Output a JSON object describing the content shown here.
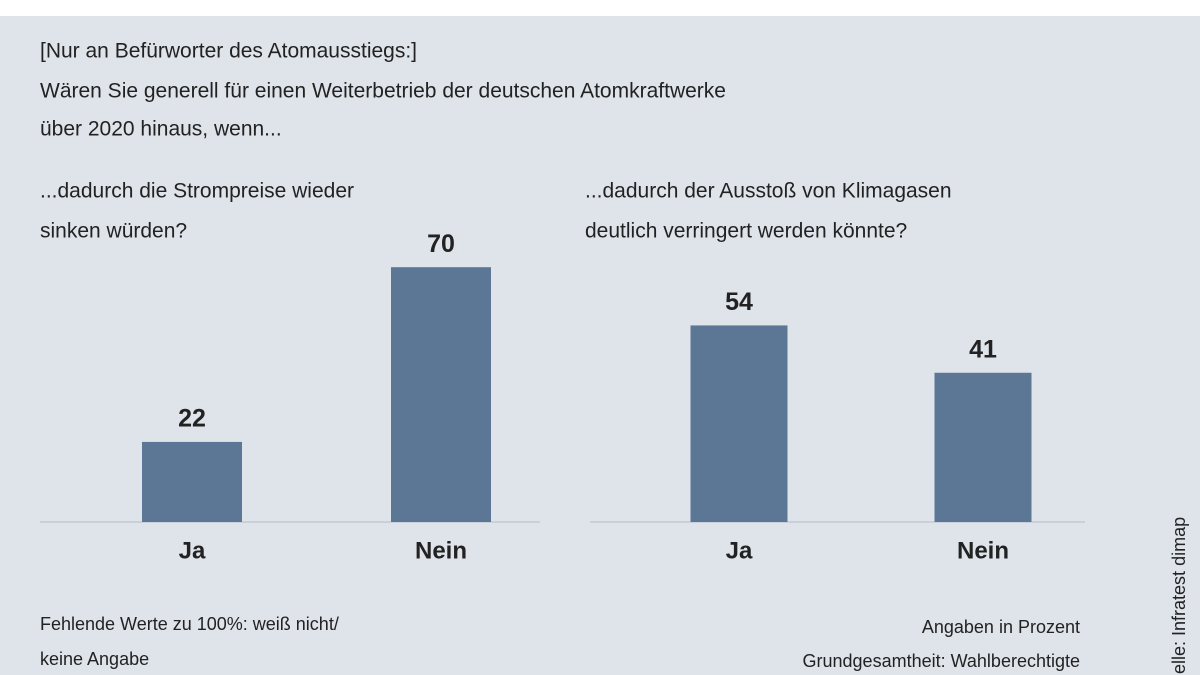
{
  "intro": "[Nur an Befürworter des Atomausstiegs:]",
  "question": [
    "Wären Sie generell für einen Weiterbetrieb der deutschen Atomkraftwerke",
    "über 2020 hinaus, wenn..."
  ],
  "footnote": [
    "Fehlende Werte zu 100%: weiß nicht/",
    "keine Angabe"
  ],
  "unit_note": "Angaben in Prozent",
  "base_note": "Grundgesamtheit: Wahlberechtigte",
  "source": "Quelle: Infratest dimap",
  "chart_data": [
    {
      "type": "bar",
      "title": [
        "...dadurch die Strompreise wieder",
        "sinken würden?"
      ],
      "categories": [
        "Ja",
        "Nein"
      ],
      "values": [
        22,
        70
      ],
      "color": "#5b7795"
    },
    {
      "type": "bar",
      "title": [
        "...dadurch der Ausstoß von Klimagasen",
        "deutlich verringert werden könnte?"
      ],
      "categories": [
        "Ja",
        "Nein"
      ],
      "values": [
        54,
        41
      ],
      "color": "#5b7795"
    }
  ]
}
